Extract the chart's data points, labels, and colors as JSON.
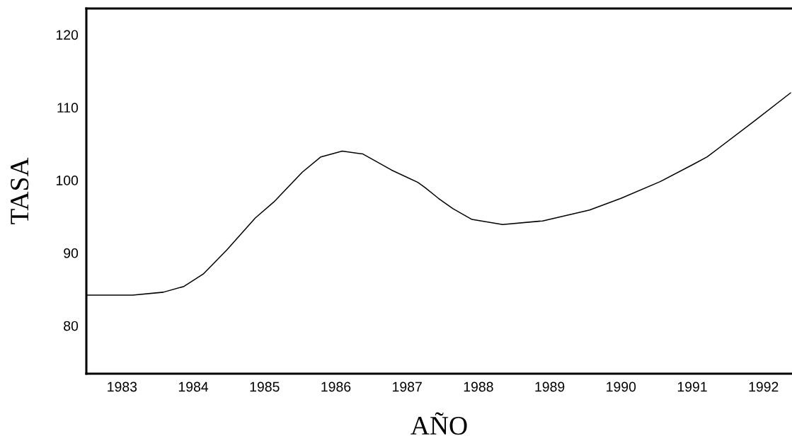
{
  "chart_data": {
    "type": "line",
    "xlabel": "AÑO",
    "ylabel": "TASA",
    "x": [
      1982.51,
      1983.15,
      1983.58,
      1983.87,
      1984.14,
      1984.47,
      1984.87,
      1985.13,
      1985.53,
      1985.79,
      1986.09,
      1986.38,
      1986.78,
      1987.15,
      1987.25,
      1987.44,
      1987.64,
      1987.91,
      1988.34,
      1988.9,
      1989.56,
      1990.0,
      1990.55,
      1991.0,
      1991.21,
      1991.88,
      1992.38
    ],
    "series": [
      {
        "color": "#000000",
        "values": [
          84.2,
          84.2,
          84.6,
          85.4,
          87.1,
          90.4,
          94.8,
          97.0,
          101.1,
          103.2,
          104.0,
          103.6,
          101.4,
          99.7,
          99.0,
          97.5,
          96.1,
          94.6,
          93.9,
          94.4,
          95.9,
          97.5,
          99.8,
          102.1,
          103.2,
          108.2,
          112.0
        ]
      }
    ],
    "xlim": [
      1982.5,
      1992.4
    ],
    "ylim": [
      73.4,
      123.6
    ],
    "xticks": [
      1983,
      1984,
      1985,
      1986,
      1987,
      1988,
      1989,
      1990,
      1991,
      1992
    ],
    "yticks": [
      80,
      90,
      100,
      110,
      120
    ],
    "grid": false,
    "legend": false,
    "marker": "none",
    "line_style": "solid"
  }
}
